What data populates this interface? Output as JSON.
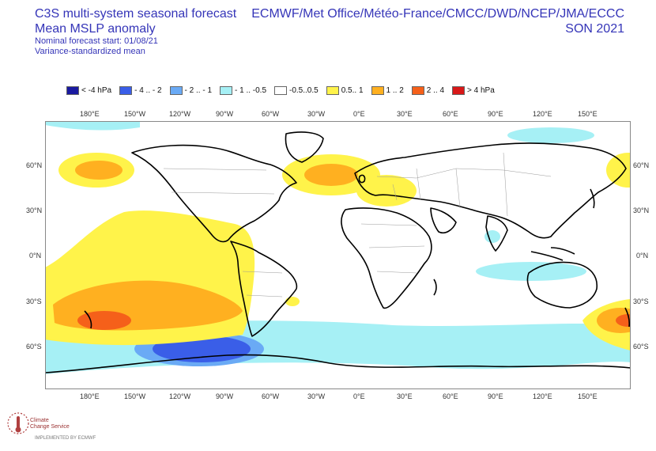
{
  "header": {
    "title_line1": "C3S multi-system seasonal forecast",
    "title_line2": "Mean MSLP anomaly",
    "subtitle_line1": "Nominal forecast start: 01/08/21",
    "subtitle_line2": "Variance-standardized mean",
    "centres": "ECMWF/Met Office/Météo-France/CMCC/DWD/NCEP/JMA/ECCC",
    "season": "SON 2021"
  },
  "legend": [
    {
      "label": "< -4 hPa",
      "color": "#1a1aa0"
    },
    {
      "label": "- 4 .. - 2",
      "color": "#3a5ee8"
    },
    {
      "label": "- 2 .. - 1",
      "color": "#6aaaf5"
    },
    {
      "label": "- 1 .. -0.5",
      "color": "#a6f0f5"
    },
    {
      "label": "-0.5..0.5",
      "color": "#ffffff"
    },
    {
      "label": "0.5.. 1",
      "color": "#fff34a"
    },
    {
      "label": "1 .. 2",
      "color": "#ffb020"
    },
    {
      "label": "2 .. 4",
      "color": "#f5601a"
    },
    {
      "label": "> 4 hPa",
      "color": "#d81818"
    }
  ],
  "axes": {
    "lon_labels": [
      "180°E",
      "150°W",
      "120°W",
      "90°W",
      "60°W",
      "30°W",
      "0°E",
      "30°E",
      "60°E",
      "90°E",
      "120°E",
      "150°E"
    ],
    "lat_labels": [
      "60°N",
      "30°N",
      "0°N",
      "30°S",
      "60°S"
    ]
  },
  "logo": {
    "name_line1": "Climate",
    "name_line2": "Change Service",
    "footer": "IMPLEMENTED BY ECMWF"
  },
  "colors": {
    "title": "#3535b8",
    "border": "#888888",
    "coast": "#000000",
    "countries": "#999999"
  }
}
